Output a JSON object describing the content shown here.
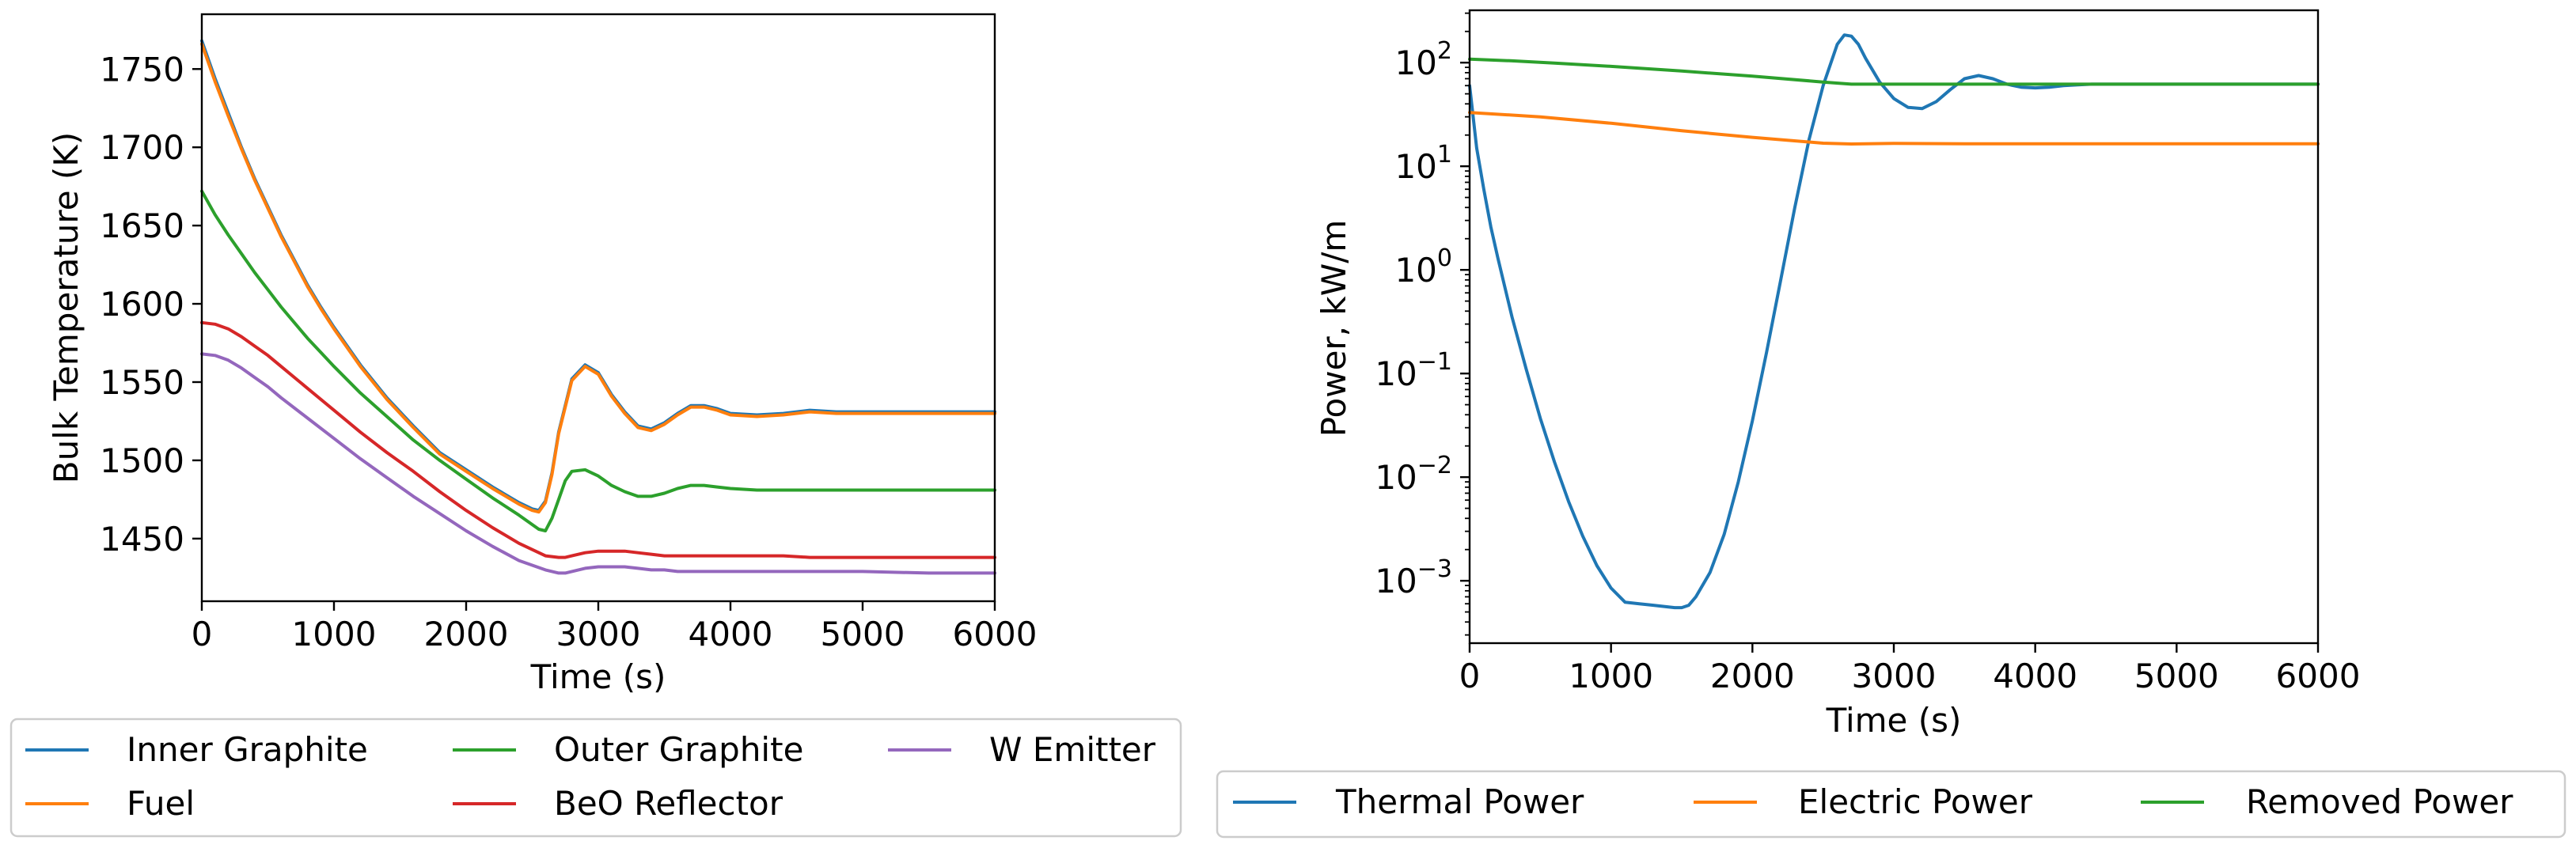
{
  "chart_data": [
    {
      "type": "line",
      "xlabel": "Time (s)",
      "ylabel": "Bulk Temperature (K)",
      "xlim": [
        0,
        6000
      ],
      "ylim": [
        1410,
        1785
      ],
      "xticks": [
        0,
        1000,
        2000,
        3000,
        4000,
        5000,
        6000
      ],
      "xtick_labels": [
        "0",
        "1000",
        "2000",
        "3000",
        "4000",
        "5000",
        "6000"
      ],
      "yticks": [
        1450,
        1500,
        1550,
        1600,
        1650,
        1700,
        1750
      ],
      "ytick_labels": [
        "1450",
        "1500",
        "1550",
        "1600",
        "1650",
        "1700",
        "1750"
      ],
      "legend_position": "below",
      "series": [
        {
          "name": "Inner Graphite",
          "color": "#1f77b4",
          "x": [
            0,
            100,
            200,
            300,
            400,
            500,
            600,
            700,
            800,
            900,
            1000,
            1200,
            1400,
            1600,
            1800,
            2000,
            2200,
            2400,
            2500,
            2550,
            2600,
            2650,
            2700,
            2800,
            2900,
            3000,
            3100,
            3200,
            3300,
            3400,
            3500,
            3600,
            3700,
            3800,
            3900,
            4000,
            4200,
            4400,
            4600,
            4800,
            5000,
            5500,
            6000
          ],
          "y": [
            1768,
            1744,
            1722,
            1700,
            1680,
            1662,
            1644,
            1628,
            1612,
            1598,
            1585,
            1561,
            1540,
            1522,
            1505,
            1494,
            1483,
            1473,
            1469,
            1468,
            1474,
            1492,
            1518,
            1552,
            1561,
            1556,
            1542,
            1531,
            1522,
            1520,
            1524,
            1530,
            1535,
            1535,
            1533,
            1530,
            1529,
            1530,
            1532,
            1531,
            1531,
            1531,
            1531
          ]
        },
        {
          "name": "Fuel",
          "color": "#ff7f0e",
          "x": [
            0,
            100,
            200,
            300,
            400,
            500,
            600,
            700,
            800,
            900,
            1000,
            1200,
            1400,
            1600,
            1800,
            2000,
            2200,
            2400,
            2500,
            2550,
            2600,
            2650,
            2700,
            2800,
            2900,
            3000,
            3100,
            3200,
            3300,
            3400,
            3500,
            3600,
            3700,
            3800,
            3900,
            4000,
            4200,
            4400,
            4600,
            4800,
            5000,
            5500,
            6000
          ],
          "y": [
            1766,
            1742,
            1720,
            1699,
            1679,
            1661,
            1643,
            1627,
            1611,
            1597,
            1584,
            1560,
            1539,
            1521,
            1504,
            1493,
            1482,
            1472,
            1468,
            1467,
            1473,
            1491,
            1517,
            1551,
            1560,
            1555,
            1541,
            1530,
            1521,
            1519,
            1523,
            1529,
            1534,
            1534,
            1532,
            1529,
            1528,
            1529,
            1531,
            1530,
            1530,
            1530,
            1530
          ]
        },
        {
          "name": "Outer Graphite",
          "color": "#2ca02c",
          "x": [
            0,
            100,
            200,
            300,
            400,
            500,
            600,
            700,
            800,
            900,
            1000,
            1200,
            1400,
            1600,
            1800,
            2000,
            2200,
            2400,
            2550,
            2600,
            2650,
            2700,
            2750,
            2800,
            2900,
            3000,
            3100,
            3200,
            3300,
            3400,
            3500,
            3600,
            3700,
            3800,
            3900,
            4000,
            4200,
            4400,
            4600,
            5000,
            5500,
            6000
          ],
          "y": [
            1672,
            1657,
            1644,
            1632,
            1620,
            1609,
            1598,
            1588,
            1578,
            1569,
            1560,
            1543,
            1528,
            1513,
            1500,
            1488,
            1476,
            1465,
            1456,
            1455,
            1463,
            1475,
            1487,
            1493,
            1494,
            1490,
            1484,
            1480,
            1477,
            1477,
            1479,
            1482,
            1484,
            1484,
            1483,
            1482,
            1481,
            1481,
            1481,
            1481,
            1481,
            1481
          ]
        },
        {
          "name": "BeO Reflector",
          "color": "#d62728",
          "x": [
            0,
            100,
            200,
            300,
            400,
            500,
            600,
            800,
            1000,
            1200,
            1400,
            1600,
            1800,
            2000,
            2200,
            2400,
            2600,
            2700,
            2750,
            2800,
            2900,
            3000,
            3100,
            3200,
            3300,
            3400,
            3500,
            3600,
            3700,
            3800,
            4000,
            4200,
            4400,
            4600,
            5000,
            5500,
            6000
          ],
          "y": [
            1588,
            1587,
            1584,
            1579,
            1573,
            1567,
            1560,
            1546,
            1532,
            1518,
            1505,
            1493,
            1480,
            1468,
            1457,
            1447,
            1439,
            1438,
            1438,
            1439,
            1441,
            1442,
            1442,
            1442,
            1441,
            1440,
            1439,
            1439,
            1439,
            1439,
            1439,
            1439,
            1439,
            1438,
            1438,
            1438,
            1438
          ]
        },
        {
          "name": "W Emitter",
          "color": "#9467bd",
          "x": [
            0,
            100,
            200,
            300,
            400,
            500,
            600,
            800,
            1000,
            1200,
            1400,
            1600,
            1800,
            2000,
            2200,
            2400,
            2600,
            2700,
            2750,
            2800,
            2900,
            3000,
            3100,
            3200,
            3300,
            3400,
            3500,
            3600,
            3700,
            3800,
            4000,
            4200,
            4400,
            4600,
            5000,
            5500,
            6000
          ],
          "y": [
            1568,
            1567,
            1564,
            1559,
            1553,
            1547,
            1540,
            1527,
            1514,
            1501,
            1489,
            1477,
            1466,
            1455,
            1445,
            1436,
            1430,
            1428,
            1428,
            1429,
            1431,
            1432,
            1432,
            1432,
            1431,
            1430,
            1430,
            1429,
            1429,
            1429,
            1429,
            1429,
            1429,
            1429,
            1429,
            1428,
            1428
          ]
        }
      ]
    },
    {
      "type": "line",
      "xlabel": "Time (s)",
      "ylabel": "Power, kW/m",
      "yscale": "log",
      "xlim": [
        0,
        6000
      ],
      "ylim": [
        0.00025,
        320
      ],
      "xticks": [
        0,
        1000,
        2000,
        3000,
        4000,
        5000,
        6000
      ],
      "xtick_labels": [
        "0",
        "1000",
        "2000",
        "3000",
        "4000",
        "5000",
        "6000"
      ],
      "yticks": [
        {
          "value": 0.001,
          "base": "10",
          "exp": "−3"
        },
        {
          "value": 0.01,
          "base": "10",
          "exp": "−2"
        },
        {
          "value": 0.1,
          "base": "10",
          "exp": "−1"
        },
        {
          "value": 1,
          "base": "10",
          "exp": "0"
        },
        {
          "value": 10,
          "base": "10",
          "exp": "1"
        },
        {
          "value": 100,
          "base": "10",
          "exp": "2"
        }
      ],
      "legend_position": "below",
      "series": [
        {
          "name": "Thermal Power",
          "color": "#1f77b4",
          "x": [
            0,
            50,
            100,
            150,
            200,
            300,
            400,
            500,
            600,
            700,
            800,
            900,
            1000,
            1100,
            1200,
            1300,
            1400,
            1450,
            1500,
            1550,
            1600,
            1700,
            1800,
            1900,
            2000,
            2100,
            2200,
            2300,
            2400,
            2500,
            2600,
            2650,
            2700,
            2750,
            2800,
            2900,
            3000,
            3100,
            3200,
            3300,
            3400,
            3500,
            3600,
            3700,
            3800,
            3900,
            4000,
            4100,
            4200,
            4300,
            4400,
            4600,
            5000,
            5500,
            6000
          ],
          "y": [
            60,
            15,
            6,
            2.6,
            1.3,
            0.35,
            0.11,
            0.037,
            0.014,
            0.0058,
            0.0027,
            0.0014,
            0.00085,
            0.00062,
            0.0006,
            0.00058,
            0.00056,
            0.00055,
            0.00055,
            0.00058,
            0.0007,
            0.0012,
            0.0028,
            0.009,
            0.035,
            0.16,
            0.8,
            4,
            18,
            60,
            150,
            185,
            180,
            150,
            110,
            65,
            45,
            37,
            36,
            42,
            55,
            70,
            75,
            70,
            62,
            58,
            57,
            58,
            60,
            61,
            62,
            62,
            62,
            62,
            62
          ]
        },
        {
          "name": "Electric Power",
          "color": "#ff7f0e",
          "x": [
            0,
            500,
            1000,
            1500,
            2000,
            2500,
            2700,
            3000,
            3500,
            4000,
            5000,
            6000
          ],
          "y": [
            33,
            30,
            26,
            22,
            19,
            16.7,
            16.4,
            16.6,
            16.5,
            16.5,
            16.5,
            16.5
          ]
        },
        {
          "name": "Removed Power",
          "color": "#2ca02c",
          "x": [
            0,
            300,
            600,
            1000,
            1500,
            2000,
            2500,
            2700,
            3000,
            3500,
            4000,
            5000,
            6000
          ],
          "y": [
            108,
            104,
            99,
            92,
            83,
            74,
            65,
            62,
            62,
            62,
            62,
            62,
            62
          ]
        }
      ]
    }
  ]
}
